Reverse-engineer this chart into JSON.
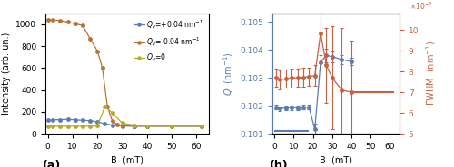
{
  "panel_a": {
    "title": "(a)",
    "xlabel": "B  (mT)",
    "ylabel": "Intensity (arb. un.)",
    "xlim": [
      -1,
      65
    ],
    "ylim": [
      0,
      1100
    ],
    "yticks": [
      0,
      200,
      400,
      600,
      800,
      1000
    ],
    "xticks": [
      0,
      10,
      20,
      30,
      40,
      50,
      60
    ],
    "series": [
      {
        "label": "$Q_y$=+0.04 nm$^{-1}$",
        "color": "#5b7bb5",
        "x": [
          0,
          2,
          5,
          8,
          11,
          14,
          17,
          20,
          23,
          26,
          30,
          35,
          40,
          50,
          62
        ],
        "y": [
          120,
          125,
          128,
          130,
          125,
          122,
          118,
          108,
          90,
          78,
          70,
          68,
          68,
          68,
          68
        ]
      },
      {
        "label": "$Q_y$=-0.04 nm$^{-1}$",
        "color": "#b87333",
        "x": [
          0,
          2,
          5,
          8,
          11,
          14,
          17,
          20,
          22,
          24,
          26,
          28,
          30,
          35,
          40,
          50,
          62
        ],
        "y": [
          1040,
          1038,
          1035,
          1020,
          1005,
          990,
          870,
          755,
          600,
          250,
          115,
          80,
          72,
          68,
          68,
          68,
          68
        ]
      },
      {
        "label": "$Q_y$=0",
        "color": "#b8aa22",
        "x": [
          0,
          2,
          5,
          8,
          11,
          14,
          17,
          20,
          23,
          26,
          30,
          35,
          40,
          50,
          62
        ],
        "y": [
          68,
          68,
          67,
          67,
          67,
          67,
          67,
          72,
          245,
          190,
          95,
          75,
          68,
          68,
          68
        ]
      }
    ]
  },
  "panel_b": {
    "title": "(b)",
    "xlabel": "B  (mT)",
    "ylabel_left": "$Q$  (nm$^{-1}$)",
    "ylabel_right": "FWHM  (nm$^{-1}$)",
    "xlim": [
      -1,
      65
    ],
    "ylim_left": [
      0.101,
      0.1053
    ],
    "ylim_right": [
      0.005,
      0.0108
    ],
    "yticks_left": [
      0.101,
      0.102,
      0.103,
      0.104,
      0.105
    ],
    "yticks_right_labels": [
      "5",
      "6",
      "7",
      "8",
      "9",
      "10"
    ],
    "yticks_right_vals": [
      0.005,
      0.006,
      0.007,
      0.008,
      0.009,
      0.01
    ],
    "xticks": [
      0,
      10,
      20,
      30,
      40,
      50,
      60
    ],
    "Q_x": [
      1,
      3,
      6,
      9,
      12,
      15,
      18,
      21,
      24,
      27,
      30,
      35,
      40
    ],
    "Q_y": [
      0.10195,
      0.1019,
      0.10192,
      0.10193,
      0.10192,
      0.10194,
      0.10195,
      0.10115,
      0.10355,
      0.1038,
      0.10375,
      0.10365,
      0.10358
    ],
    "Q_yerr": [
      8e-05,
      8e-05,
      8e-05,
      8e-05,
      8e-05,
      8e-05,
      8e-05,
      0.0002,
      0.00025,
      0.00025,
      0.0002,
      0.00015,
      0.00012
    ],
    "Q_color": "#5b7bb5",
    "Q_hline_x1": 0,
    "Q_hline_x2": 18,
    "Q_hline_y": 0.1011,
    "FWHM_x": [
      1,
      3,
      6,
      9,
      12,
      15,
      18,
      21,
      24,
      27,
      30,
      35,
      40
    ],
    "FWHM_y": [
      0.0077,
      0.0076,
      0.00765,
      0.00768,
      0.0077,
      0.00772,
      0.00775,
      0.0078,
      0.00985,
      0.0083,
      0.0077,
      0.0071,
      0.007
    ],
    "FWHM_yerr": [
      0.00045,
      0.00045,
      0.00045,
      0.00045,
      0.00045,
      0.00045,
      0.00045,
      0.0005,
      0.0014,
      0.0018,
      0.0025,
      0.003,
      0.0025
    ],
    "FWHM_color": "#c86040",
    "FWHM_hline_x1": 40,
    "FWHM_hline_x2": 62,
    "FWHM_hline_y": 0.007
  }
}
